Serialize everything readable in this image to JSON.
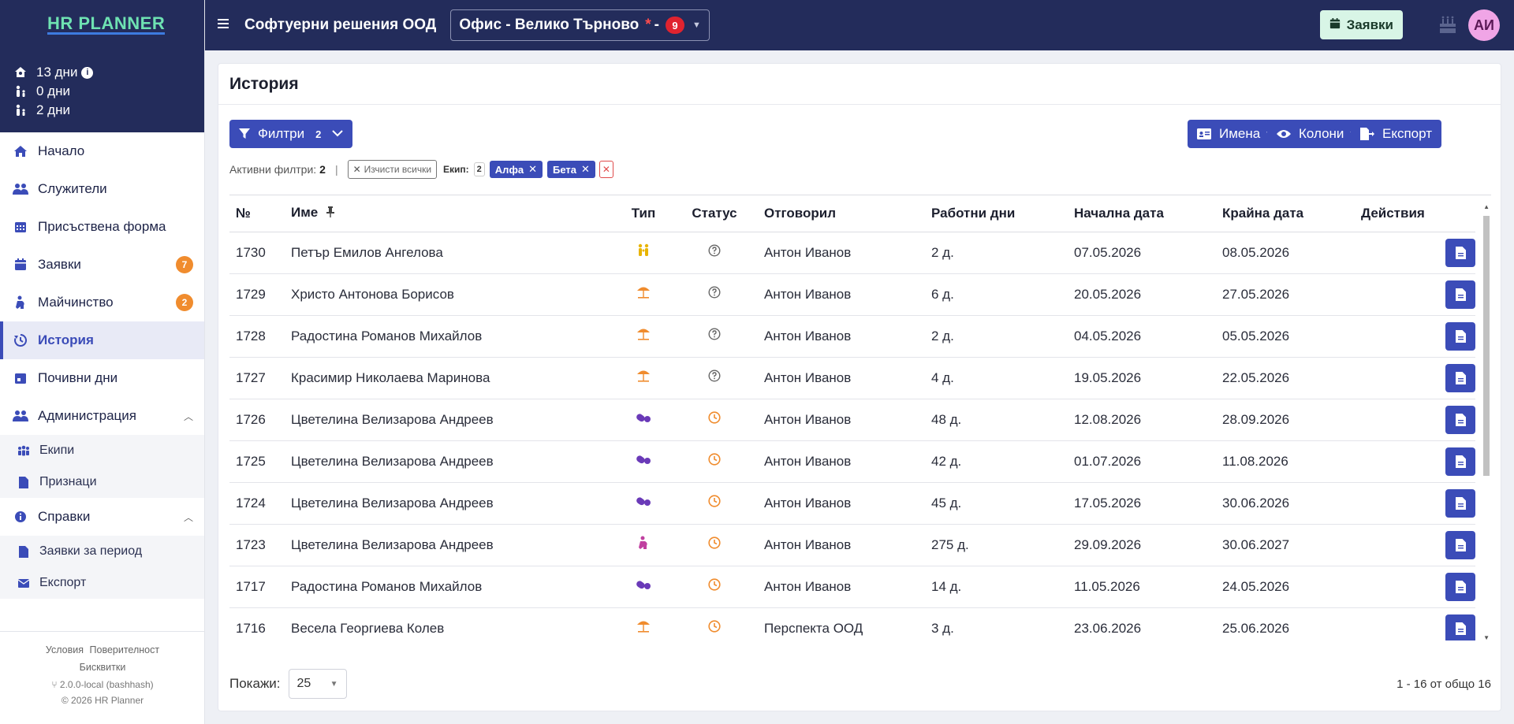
{
  "app": {
    "logo": "HR PLANNER",
    "company": "Софтуерни решения ООД"
  },
  "office": {
    "label": "Офис - Велико Търново",
    "marker": "*",
    "dash": "-",
    "badge": "9"
  },
  "topbar": {
    "requests_label": "Заявки",
    "avatar_initials": "АИ"
  },
  "stats": [
    {
      "icon": "vacation-icon",
      "text": "13 дни"
    },
    {
      "icon": "person-child-icon",
      "text": "0 дни"
    },
    {
      "icon": "person-child-icon",
      "text": "2 дни"
    }
  ],
  "nav": {
    "home": "Начало",
    "employees": "Служители",
    "attendance": "Присъствена форма",
    "requests": "Заявки",
    "requests_badge": "7",
    "maternity": "Майчинство",
    "maternity_badge": "2",
    "history": "История",
    "holidays": "Почивни дни",
    "admin": "Администрация",
    "teams": "Екипи",
    "attributes": "Признаци",
    "reports": "Справки",
    "period_requests": "Заявки за период",
    "export": "Експорт"
  },
  "footer": {
    "terms": "Условия",
    "privacy": "Поверителност",
    "cookies": "Бисквитки",
    "version": "2.0.0-local (bashhash)",
    "copyright": "© 2026  HR Planner"
  },
  "page": {
    "title": "История"
  },
  "toolbar": {
    "filters_label": "Филтри",
    "filters_count": "2",
    "names_label": "Имена",
    "columns_label": "Колони",
    "export_label": "Експорт"
  },
  "active_filters": {
    "label": "Активни филтри:",
    "count": "2",
    "separator": "|",
    "clear_all": "Изчисти всички",
    "team_label": "Екип:",
    "team_count": "2",
    "chips": [
      "Алфа",
      "Бета"
    ]
  },
  "table": {
    "headers": {
      "num": "№",
      "name": "Име",
      "type": "Тип",
      "status": "Статус",
      "approver": "Отговорил",
      "workdays": "Работни дни",
      "start": "Начална дата",
      "end": "Крайна дата",
      "actions": "Действия"
    },
    "rows": [
      {
        "num": "1730",
        "name": "Петър Емилов Ангелова",
        "type": "family-icon",
        "status": "pending-question-icon",
        "approver": "Антон Иванов",
        "days": "2 д.",
        "start": "07.05.2026",
        "end": "08.05.2026"
      },
      {
        "num": "1729",
        "name": "Христо Антонова Борисов",
        "type": "beach-umbrella-icon",
        "status": "pending-question-icon",
        "approver": "Антон Иванов",
        "days": "6 д.",
        "start": "20.05.2026",
        "end": "27.05.2026"
      },
      {
        "num": "1728",
        "name": "Радостина Романов Михайлов",
        "type": "beach-umbrella-icon",
        "status": "pending-question-icon",
        "approver": "Антон Иванов",
        "days": "2 д.",
        "start": "04.05.2026",
        "end": "05.05.2026"
      },
      {
        "num": "1727",
        "name": "Красимир Николаева Маринова",
        "type": "beach-umbrella-icon",
        "status": "pending-question-icon",
        "approver": "Антон Иванов",
        "days": "4 д.",
        "start": "19.05.2026",
        "end": "22.05.2026"
      },
      {
        "num": "1726",
        "name": "Цветелина Велизарова Андреев",
        "type": "pills-icon",
        "status": "clock-icon",
        "approver": "Антон Иванов",
        "days": "48 д.",
        "start": "12.08.2026",
        "end": "28.09.2026"
      },
      {
        "num": "1725",
        "name": "Цветелина Велизарова Андреев",
        "type": "pills-icon",
        "status": "clock-icon",
        "approver": "Антон Иванов",
        "days": "42 д.",
        "start": "01.07.2026",
        "end": "11.08.2026"
      },
      {
        "num": "1724",
        "name": "Цветелина Велизарова Андреев",
        "type": "pills-icon",
        "status": "clock-icon",
        "approver": "Антон Иванов",
        "days": "45 д.",
        "start": "17.05.2026",
        "end": "30.06.2026"
      },
      {
        "num": "1723",
        "name": "Цветелина Велизарова Андреев",
        "type": "maternity-icon",
        "status": "clock-icon",
        "approver": "Антон Иванов",
        "days": "275 д.",
        "start": "29.09.2026",
        "end": "30.06.2027"
      },
      {
        "num": "1717",
        "name": "Радостина Романов Михайлов",
        "type": "pills-icon",
        "status": "clock-icon",
        "approver": "Антон Иванов",
        "days": "14 д.",
        "start": "11.05.2026",
        "end": "24.05.2026"
      },
      {
        "num": "1716",
        "name": "Весела Георгиева Колев",
        "type": "beach-umbrella-icon",
        "status": "clock-icon",
        "approver": "Перспекта ООД",
        "days": "3 д.",
        "start": "23.06.2026",
        "end": "25.06.2026"
      }
    ]
  },
  "pagination": {
    "show_label": "Покажи:",
    "page_size": "25",
    "info": "1 - 16 от общо 16"
  },
  "colors": {
    "primary": "#3b4cb8",
    "header_bg": "#232c5b",
    "badge_orange": "#f08c2e",
    "badge_red": "#e0232f",
    "status_orange": "#f08c2e",
    "type_umbrella": "#f08c2e",
    "type_pills": "#6a3ab8",
    "type_family": "#e8b400",
    "type_maternity": "#c040a0"
  }
}
